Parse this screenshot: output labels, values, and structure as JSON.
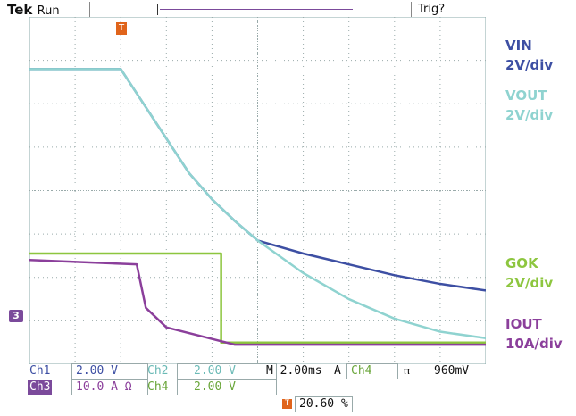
{
  "header": {
    "brand": "Tek",
    "run_state": "Run",
    "trigger_status": "Trig?"
  },
  "legend": [
    {
      "name": "VIN",
      "scale": "2V/div",
      "color": "#3d4fa3"
    },
    {
      "name": "VOUT",
      "scale": "2V/div",
      "color": "#8fd3d0"
    },
    {
      "name": "GOK",
      "scale": "2V/div",
      "color": "#8dc63f"
    },
    {
      "name": "IOUT",
      "scale": "10A/div",
      "color": "#8b3f9b"
    }
  ],
  "markers": {
    "ch3_ground": "3",
    "trigger_icon": "T"
  },
  "settings": {
    "ch1_label": "Ch1",
    "ch1_value": "2.00 V",
    "ch2_label": "Ch2",
    "ch2_value": "2.00 V",
    "timebase": "M 2.00ms",
    "trig_mode": "A",
    "trig_source": "Ch4",
    "trig_slope": "ⲡ",
    "trig_level": "960mV",
    "ch3_label": "Ch3",
    "ch3_value": "10.0 A Ω",
    "ch4_label": "Ch4",
    "ch4_value": "2.00 V",
    "trigger_position": "20.60 %"
  },
  "chart_data": {
    "type": "line",
    "x_unit": "div",
    "y_unit": "div",
    "xlim": [
      0,
      10
    ],
    "ylim": [
      0,
      8
    ],
    "grid": true,
    "series": [
      {
        "name": "VIN",
        "color": "#3d4fa3",
        "x": [
          0,
          2.0,
          2.5,
          3.0,
          3.5,
          4.0,
          4.5,
          5.0,
          6.0,
          7.0,
          8.0,
          9.0,
          10.0
        ],
        "y": [
          6.8,
          6.8,
          6.0,
          5.2,
          4.4,
          3.8,
          3.3,
          2.85,
          2.55,
          2.3,
          2.05,
          1.85,
          1.7
        ]
      },
      {
        "name": "VOUT",
        "color": "#8fd3d0",
        "x": [
          0,
          2.0,
          2.5,
          3.0,
          3.5,
          4.0,
          4.5,
          5.0,
          6.0,
          7.0,
          8.0,
          9.0,
          10.0
        ],
        "y": [
          6.8,
          6.8,
          6.0,
          5.2,
          4.4,
          3.8,
          3.3,
          2.85,
          2.1,
          1.5,
          1.05,
          0.75,
          0.6
        ]
      },
      {
        "name": "GOK",
        "color": "#8dc63f",
        "x": [
          0,
          4.2,
          4.2,
          10.0
        ],
        "y": [
          2.55,
          2.55,
          0.5,
          0.5
        ]
      },
      {
        "name": "IOUT",
        "color": "#8b3f9b",
        "x": [
          0,
          2.35,
          2.55,
          3.0,
          4.5,
          10.0
        ],
        "y": [
          2.4,
          2.3,
          1.3,
          0.85,
          0.45,
          0.45
        ]
      }
    ]
  }
}
